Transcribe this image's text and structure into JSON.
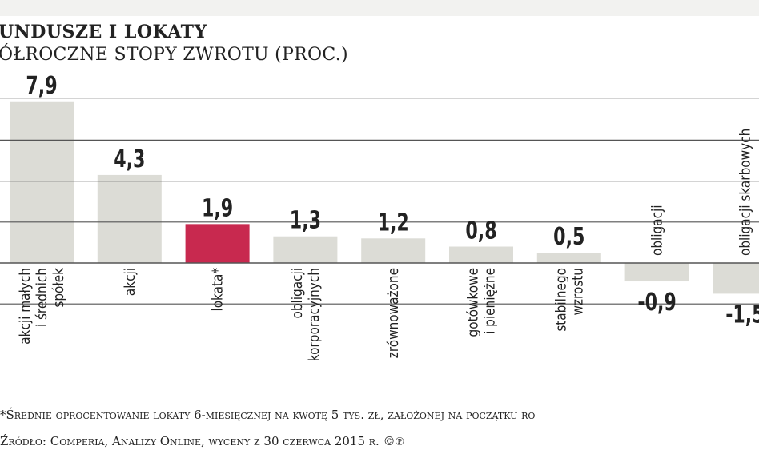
{
  "colors": {
    "bar": "#dcdcd6",
    "highlight": "#c8294f",
    "grid": "#555555",
    "text": "#222222"
  },
  "header": {
    "title": "UNDUSZE I LOKATY",
    "subtitle": "ÓŁROCZNE STOPY ZWROTU (PROC.)"
  },
  "footer": {
    "note": "*Średnie oprocentowanie lokaty 6-miesięcznej na kwotę 5 tys. zł, założonej na początku ro",
    "source": "Źródło: Comperia, Analizy Online, wyceny z 30 czerwca 2015 r. ©℗"
  },
  "chart_data": {
    "type": "bar",
    "title": "UNDUSZE I LOKATY",
    "subtitle": "ÓŁROCZNE STOPY ZWROTU (PROC.)",
    "categories": [
      "akcji małych\ni średnich\nspółek",
      "akcji",
      "lokata*",
      "obligacji\nkorporacyjnych",
      "zrównoważone",
      "gotówkowe\ni pieniężne",
      "stabilnego\nwzrostu",
      "obligacji",
      "obligacji skarbowych"
    ],
    "values": [
      7.9,
      4.3,
      1.9,
      1.3,
      1.2,
      0.8,
      0.5,
      -0.9,
      -1.5
    ],
    "value_labels": [
      "7,9",
      "4,3",
      "1,9",
      "1,3",
      "1,2",
      "0,8",
      "0,5",
      "-0,9",
      "-1,5"
    ],
    "highlight_index": 2,
    "ylim": [
      -2,
      8
    ],
    "gridlines": [
      8,
      6,
      4,
      2,
      0,
      -2
    ],
    "grid": true,
    "xlabel": "",
    "ylabel": ""
  }
}
